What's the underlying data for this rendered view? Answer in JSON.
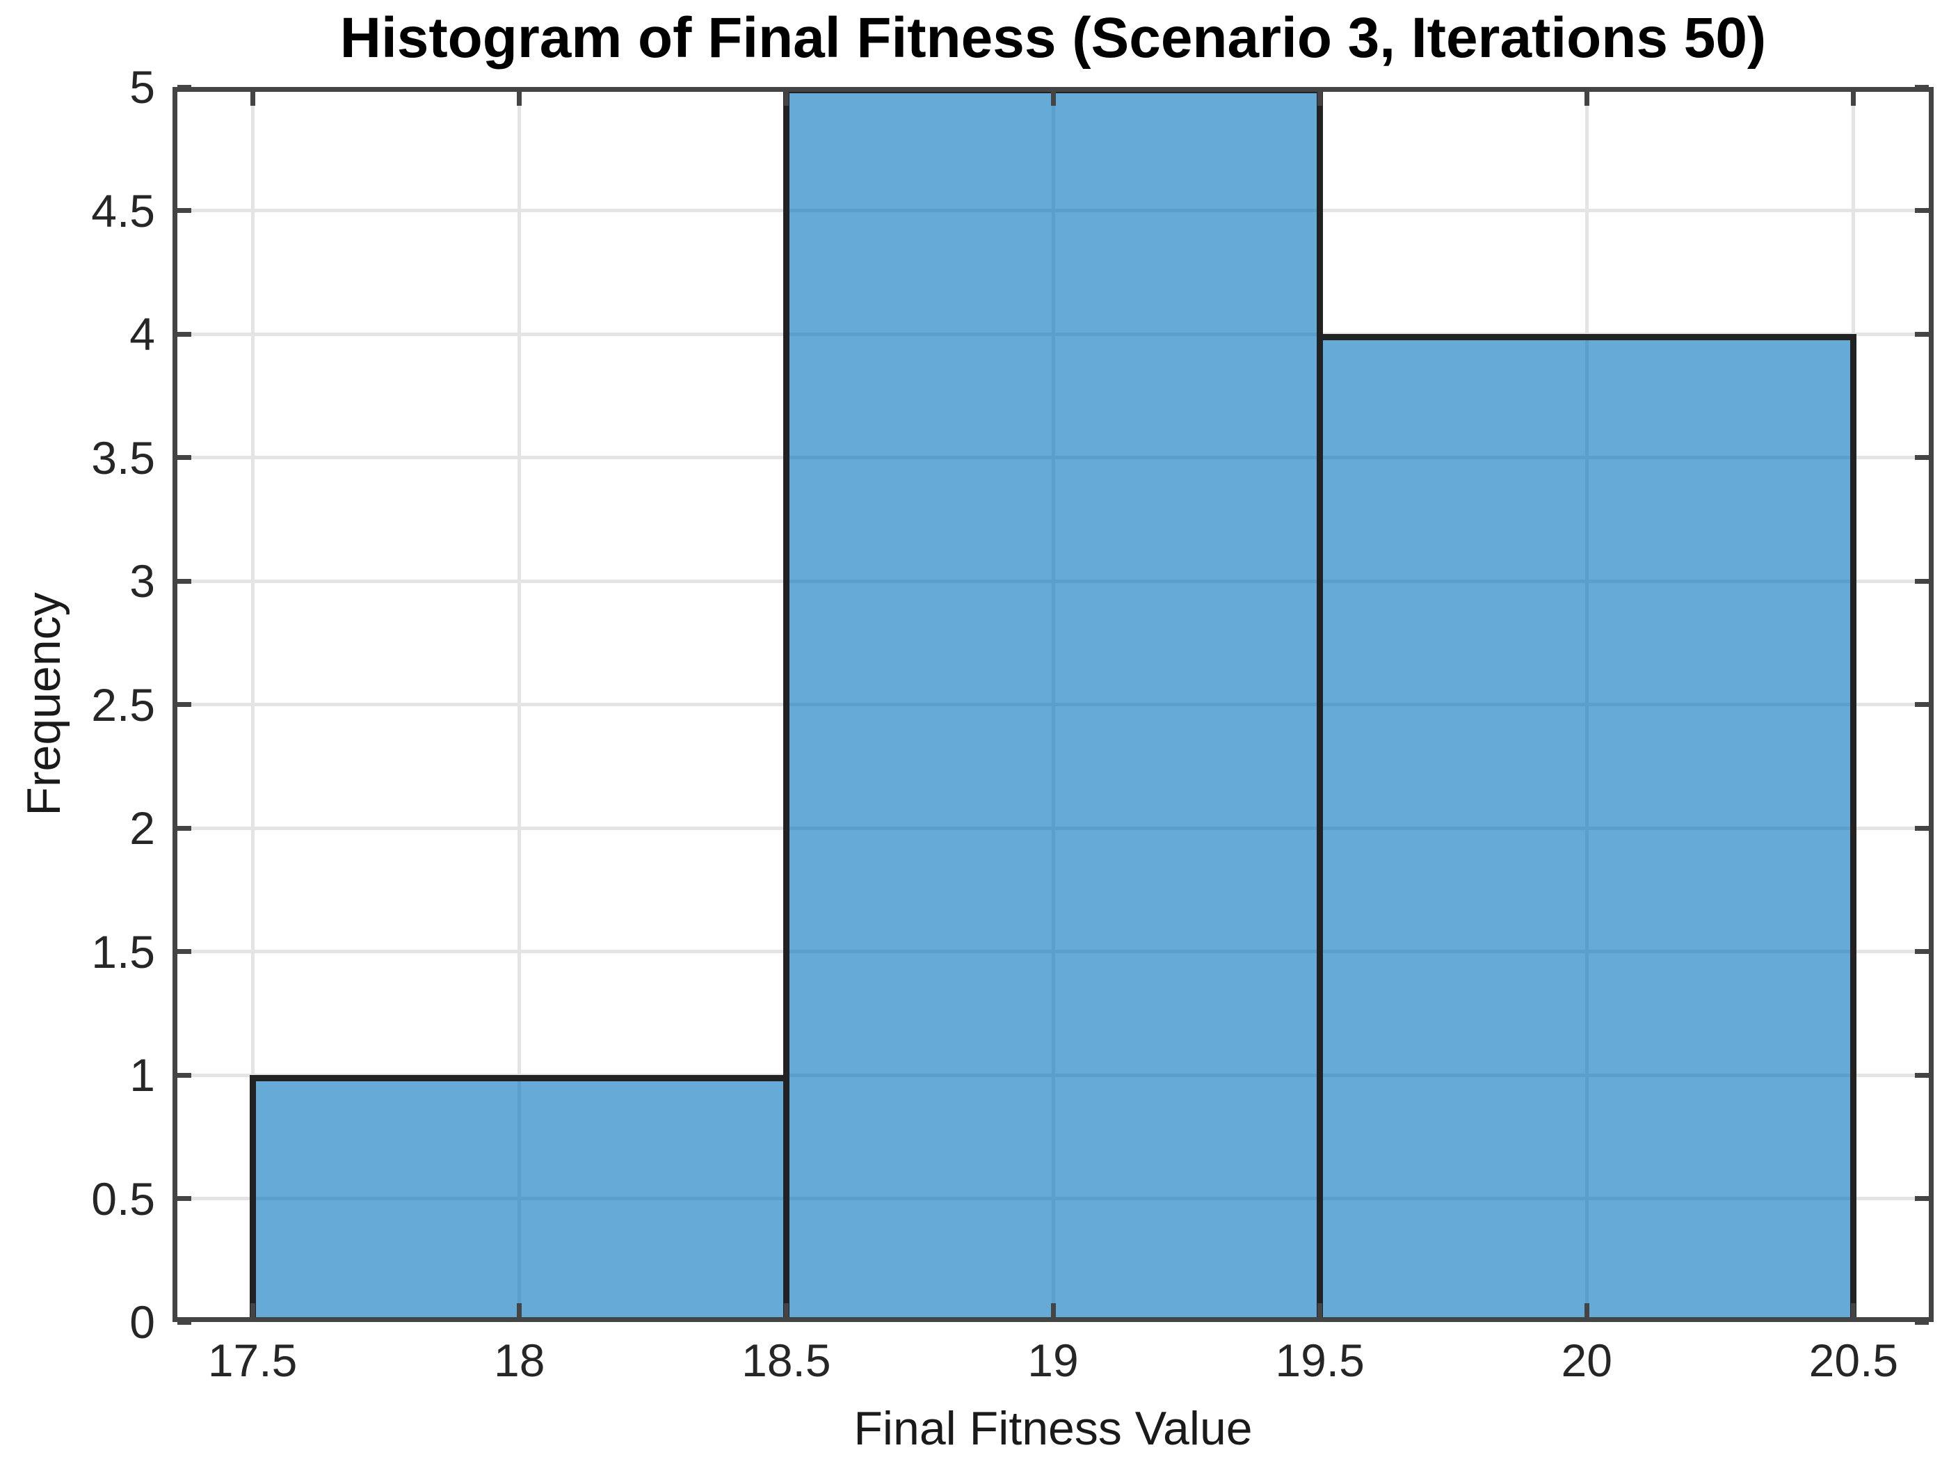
{
  "figure": {
    "background": "#ffffff"
  },
  "chart_data": {
    "type": "bar",
    "subtype": "histogram",
    "title": "Histogram of Final Fitness (Scenario 3, Iterations 50)",
    "xlabel": "Final Fitness Value",
    "ylabel": "Frequency",
    "bin_edges": [
      17.5,
      18.5,
      19.5,
      20.5
    ],
    "counts": [
      1,
      5,
      4
    ],
    "bins": [
      {
        "range": "17.5-18.5",
        "count": 1
      },
      {
        "range": "18.5-19.5",
        "count": 5
      },
      {
        "range": "19.5-20.5",
        "count": 4
      }
    ],
    "xlim": [
      17.35,
      20.65
    ],
    "ylim": [
      0,
      5
    ],
    "xticks": [
      17.5,
      18,
      18.5,
      19,
      19.5,
      20,
      20.5
    ],
    "xtick_labels": [
      "17.5",
      "18",
      "18.5",
      "19",
      "19.5",
      "20",
      "20.5"
    ],
    "yticks": [
      0,
      0.5,
      1,
      1.5,
      2,
      2.5,
      3,
      3.5,
      4,
      4.5,
      5
    ],
    "ytick_labels": [
      "0",
      "0.5",
      "1",
      "1.5",
      "2",
      "2.5",
      "3",
      "3.5",
      "4",
      "4.5",
      "5"
    ],
    "grid": true,
    "legend_position": "none",
    "colors": {
      "bar_face": "#0072BD",
      "bar_face_alpha": 0.6,
      "bar_edge": "#222222",
      "grid": "#e4e4e4",
      "axis": "#444444",
      "tick_label": "#262626",
      "axis_label": "#1a1a1a",
      "title": "#000000"
    }
  }
}
